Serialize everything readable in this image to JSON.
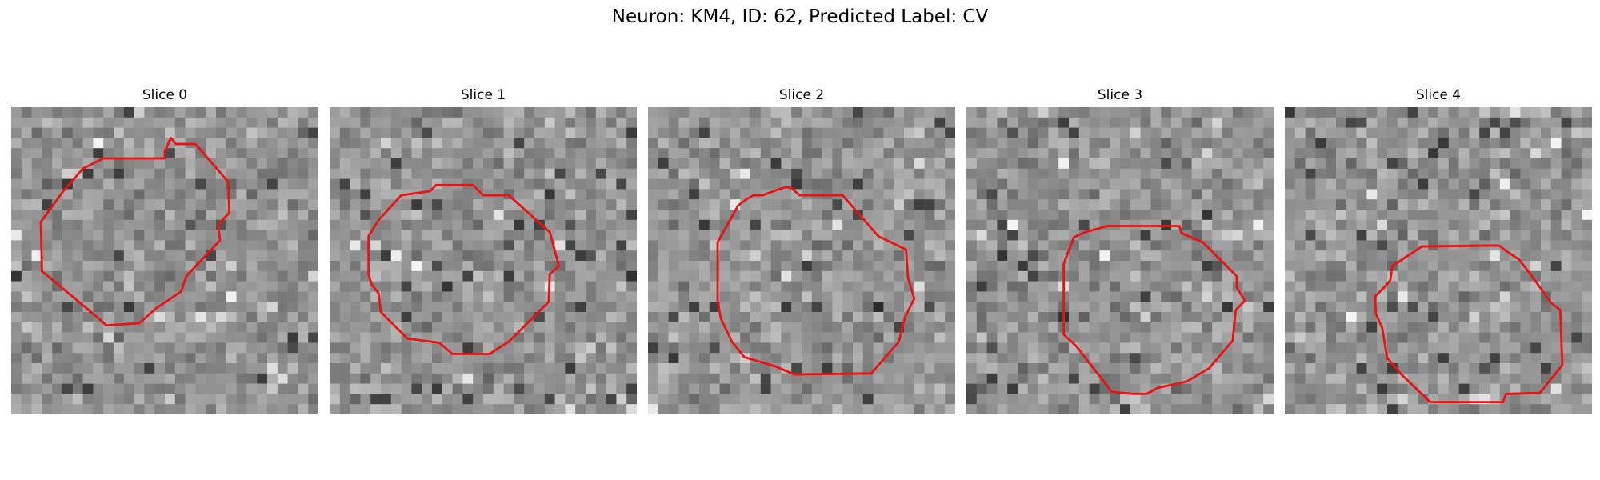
{
  "figure": {
    "title": "Neuron: KM4, ID: 62, Predicted Label: CV",
    "contour_color": "#ee1111",
    "colormap": "gray"
  },
  "panels": [
    {
      "title": "Slice 0"
    },
    {
      "title": "Slice 1"
    },
    {
      "title": "Slice 2"
    },
    {
      "title": "Slice 3"
    },
    {
      "title": "Slice 4"
    }
  ]
}
